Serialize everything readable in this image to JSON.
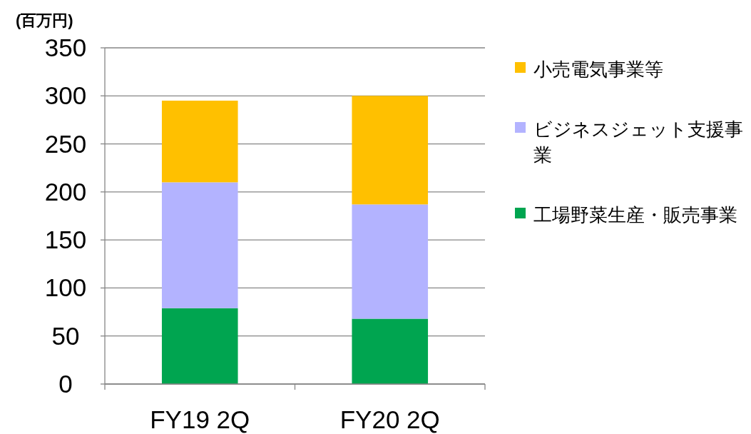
{
  "chart_data": {
    "type": "bar",
    "stacked": true,
    "ylabel": "(百万円)",
    "categories": [
      "FY19 2Q",
      "FY20 2Q"
    ],
    "series": [
      {
        "name": "工場野菜生産・販売事業",
        "color": "#00a550",
        "values": [
          79,
          68
        ]
      },
      {
        "name": "ビジネスジェット支援事業",
        "color": "#b3b3ff",
        "values": [
          131,
          119
        ]
      },
      {
        "name": "小売電気事業等",
        "color": "#ffc000",
        "values": [
          85,
          113
        ]
      }
    ],
    "ylim": [
      0,
      350
    ],
    "yticks": [
      0,
      50,
      100,
      150,
      200,
      250,
      300,
      350
    ],
    "grid": "y",
    "legend": "right"
  }
}
